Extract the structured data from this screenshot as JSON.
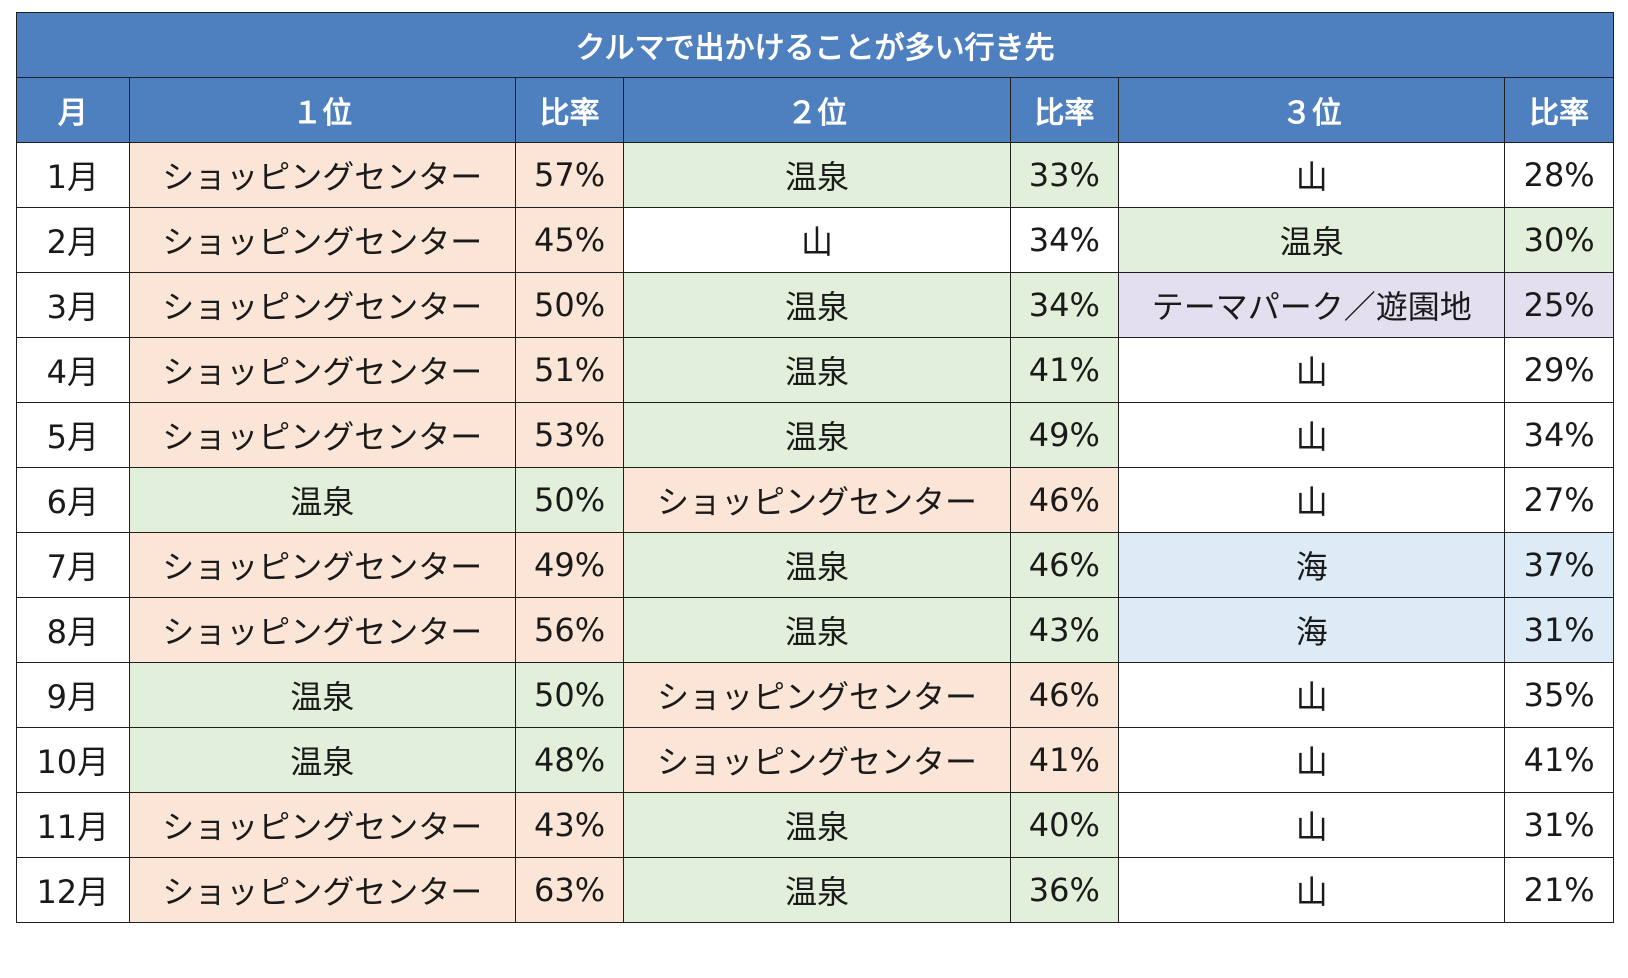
{
  "table": {
    "title": "クルマで出かけることが多い行き先",
    "headers": [
      "月",
      "１位",
      "比率",
      "２位",
      "比率",
      "３位",
      "比率"
    ],
    "place_colors": {
      "ショッピングセンター": "#fbe5d6",
      "温泉": "#e2efda",
      "山": "#ffffff",
      "テーマパーク／遊園地": "#e4dfee",
      "海": "#ddebf7"
    }
  },
  "chart_data": {
    "type": "table",
    "title": "クルマで出かけることが多い行き先",
    "columns": [
      "月",
      "１位",
      "比率",
      "２位",
      "比率",
      "３位",
      "比率"
    ],
    "rows": [
      [
        "1月",
        "ショッピングセンター",
        "57%",
        "温泉",
        "33%",
        "山",
        "28%"
      ],
      [
        "2月",
        "ショッピングセンター",
        "45%",
        "山",
        "34%",
        "温泉",
        "30%"
      ],
      [
        "3月",
        "ショッピングセンター",
        "50%",
        "温泉",
        "34%",
        "テーマパーク／遊園地",
        "25%"
      ],
      [
        "4月",
        "ショッピングセンター",
        "51%",
        "温泉",
        "41%",
        "山",
        "29%"
      ],
      [
        "5月",
        "ショッピングセンター",
        "53%",
        "温泉",
        "49%",
        "山",
        "34%"
      ],
      [
        "6月",
        "温泉",
        "50%",
        "ショッピングセンター",
        "46%",
        "山",
        "27%"
      ],
      [
        "7月",
        "ショッピングセンター",
        "49%",
        "温泉",
        "46%",
        "海",
        "37%"
      ],
      [
        "8月",
        "ショッピングセンター",
        "56%",
        "温泉",
        "43%",
        "海",
        "31%"
      ],
      [
        "9月",
        "温泉",
        "50%",
        "ショッピングセンター",
        "46%",
        "山",
        "35%"
      ],
      [
        "10月",
        "温泉",
        "48%",
        "ショッピングセンター",
        "41%",
        "山",
        "41%"
      ],
      [
        "11月",
        "ショッピングセンター",
        "43%",
        "温泉",
        "40%",
        "山",
        "31%"
      ],
      [
        "12月",
        "ショッピングセンター",
        "63%",
        "温泉",
        "36%",
        "山",
        "21%"
      ]
    ]
  }
}
